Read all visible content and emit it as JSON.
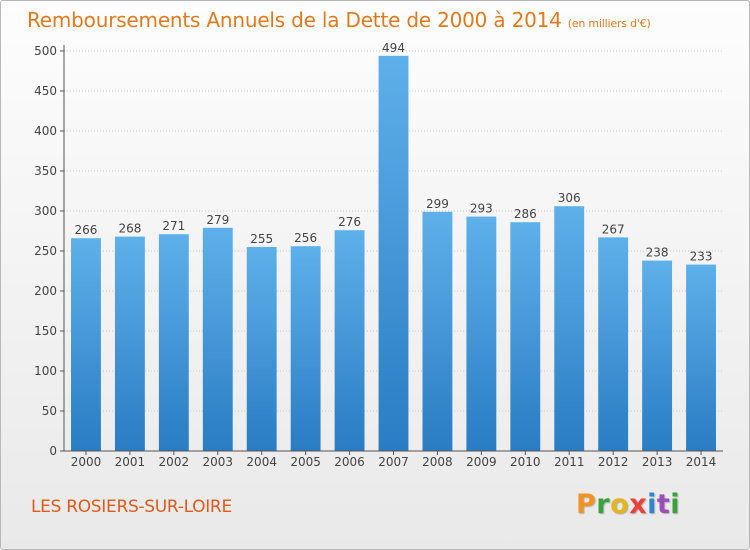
{
  "title": "Remboursements Annuels de la Dette de 2000 à 2014",
  "unit": "(en milliers d'€)",
  "location": "LES ROSIERS-SUR-LOIRE",
  "logo_letters": [
    "P",
    "r",
    "o",
    "x",
    "i",
    "t",
    "i"
  ],
  "colors": {
    "title": "#e07a1f",
    "bar_light": "#5eb0ea",
    "bar_dark": "#2a7cc4",
    "axis": "#555555"
  },
  "chart_data": {
    "type": "bar",
    "title": "Remboursements Annuels de la Dette de 2000 à 2014",
    "categories": [
      "2000",
      "2001",
      "2002",
      "2003",
      "2004",
      "2005",
      "2006",
      "2007",
      "2008",
      "2009",
      "2010",
      "2011",
      "2012",
      "2013",
      "2014"
    ],
    "values": [
      266,
      268,
      271,
      279,
      255,
      256,
      276,
      494,
      299,
      293,
      286,
      306,
      267,
      238,
      233
    ],
    "ylim": [
      0,
      500
    ],
    "yticks": [
      0,
      50,
      100,
      150,
      200,
      250,
      300,
      350,
      400,
      450,
      500
    ],
    "grid": true,
    "xlabel": "",
    "ylabel": ""
  }
}
